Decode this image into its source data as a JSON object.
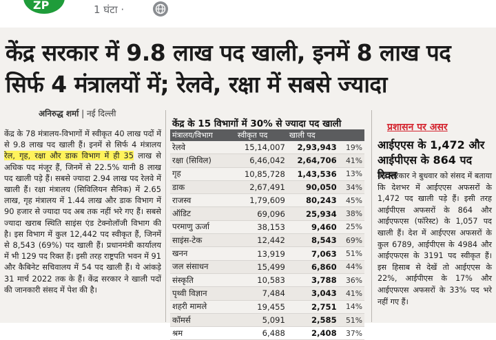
{
  "post": {
    "time": "1 घंटा",
    "separator": "·",
    "privacy_icon": "globe-icon",
    "avatar_color": "#1f9c3a"
  },
  "clipping": {
    "headline": "केंद्र सरकार में 9.8 लाख पद खाली, इनमें 8 लाख पद सिर्फ 4 मंत्रालयों में; रेलवे, रक्षा में सबसे ज्यादा",
    "byline_name": "अनिरुद्ध शर्मा",
    "byline_sep": " | ",
    "byline_city": "नई दिल्ली",
    "article": {
      "text_before": "केंद्र के 78 मंत्रालय-विभागों में स्वीकृत 40 लाख पदों में से 9.8 लाख पद खाली हैं। इनमें से सिर्फ 4 मंत्रालय ",
      "highlight": "रेल, गृह, रक्षा और डाक विभाग में ही 35",
      "text_after": " लाख से अधिक पद मंजूर हैं, जिनमें से 22.5% यानी 8 लाख पद खाली पड़े हैं। सबसे ज्यादा 2.94 लाख पद रेलवे में खाली हैं। रक्षा मंत्रालय (सिविलियन सैनिक) में 2.65 लाख, गृह मंत्रालय में 1.44 लाख और डाक विभाग में 90 हजार से ज्यादा पद अब तक नहीं भरे गए हैं। सबसे ज्यादा खराब स्थिति साइंस एंड टेक्नोलॉजी विभाग की है। इस विभाग में कुल 12,442 पद स्वीकृत हैं, जिनमें से 8,543 (69%) पद खाली हैं। प्रधानमंत्री कार्यालय में भी 129 पद रिक्त हैं। इसी तरह राष्ट्रपति भवन में 91 और कैबिनेट सचिवालय में 54 पद खाली हैं। ये आंकड़े 31 मार्च 2022 तक के हैं। केंद्र सरकार ने खाली पदों की जानकारी संसद में पेश की है।"
    },
    "table": {
      "title": "केंद्र के 15 विभागों में 30% से ज्यादा पद खाली",
      "headers": [
        "मंत्रालय/विभाग",
        "स्वीकृत पद",
        "खाली पद",
        ""
      ],
      "header_color": "#5b5c5e",
      "rows": [
        {
          "dept": "रेलवे",
          "sanctioned": "15,14,007",
          "vacant": "2,93,943",
          "pct": "19%"
        },
        {
          "dept": "रक्षा (सिविल)",
          "sanctioned": "6,46,042",
          "vacant": "2,64,706",
          "pct": "41%"
        },
        {
          "dept": "गृह",
          "sanctioned": "10,85,728",
          "vacant": "1,43,536",
          "pct": "13%"
        },
        {
          "dept": "डाक",
          "sanctioned": "2,67,491",
          "vacant": "90,050",
          "pct": "34%"
        },
        {
          "dept": "राजस्व",
          "sanctioned": "1,79,609",
          "vacant": "80,243",
          "pct": "45%"
        },
        {
          "dept": "ऑडिट",
          "sanctioned": "69,096",
          "vacant": "25,934",
          "pct": "38%"
        },
        {
          "dept": "परमाणु ऊर्जा",
          "sanctioned": "38,153",
          "vacant": "9,460",
          "pct": "25%"
        },
        {
          "dept": "साइंस-टेक",
          "sanctioned": "12,442",
          "vacant": "8,543",
          "pct": "69%"
        },
        {
          "dept": "खनन",
          "sanctioned": "13,919",
          "vacant": "7,063",
          "pct": "51%"
        },
        {
          "dept": "जल संसाधन",
          "sanctioned": "15,499",
          "vacant": "6,860",
          "pct": "44%"
        },
        {
          "dept": "संस्कृति",
          "sanctioned": "10,583",
          "vacant": "3,788",
          "pct": "36%"
        },
        {
          "dept": "पृथ्वी विज्ञान",
          "sanctioned": "7,484",
          "vacant": "3,043",
          "pct": "41%"
        },
        {
          "dept": "शहरी मामले",
          "sanctioned": "19,455",
          "vacant": "2,751",
          "pct": "14%"
        },
        {
          "dept": "कॉमर्स",
          "sanctioned": "5,091",
          "vacant": "2,585",
          "pct": "51%"
        },
        {
          "dept": "श्रम",
          "sanctioned": "6,488",
          "vacant": "2,408",
          "pct": "37%"
        }
      ]
    },
    "side": {
      "kicker": "प्रशासन पर असर",
      "kicker_color": "#d4252f",
      "headline": "आईएएस के 1,472 और आईपीएस के 864 पद रिक्त",
      "body": "केंद्र सरकार ने बुधवार को संसद में बताया कि देशभर में आईएएस अफसरों के 1,472 पद खाली पड़े हैं। इसी तरह आईपीएस अफसरों के 864 और आईएफएस (फॉरेस्ट) के 1,057 पद खाली हैं। देश में आईएएस अफसरों के कुल 6789, आईपीएस के 4984 और आईएफएस के 3191 पद स्वीकृत हैं। इस हिसाब से देखें तो आईएएस के 22%, आईपीएस के 17% और आईएफएस अफसरों के 33% पद भरे नहीं गए हैं।"
    }
  }
}
